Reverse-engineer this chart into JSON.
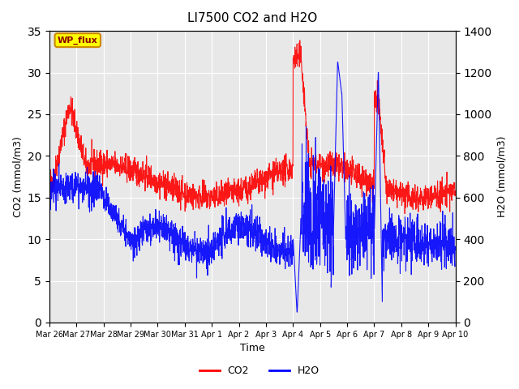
{
  "title": "LI7500 CO2 and H2O",
  "xlabel": "Time",
  "ylabel_left": "CO2 (mmol/m3)",
  "ylabel_right": "H2O (mmol/m3)",
  "ylim_left": [
    0,
    35
  ],
  "ylim_right": [
    0,
    1400
  ],
  "yticks_left": [
    0,
    5,
    10,
    15,
    20,
    25,
    30,
    35
  ],
  "yticks_right": [
    0,
    200,
    400,
    600,
    800,
    1000,
    1200,
    1400
  ],
  "co2_color": "#FF0000",
  "h2o_color": "#0000FF",
  "bg_color": "#ffffff",
  "plot_bg_color": "#e8e8e8",
  "grid_color": "#ffffff",
  "legend_labels": [
    "CO2",
    "H2O"
  ],
  "annotation_text": "WP_flux",
  "annotation_bg": "#ffff00",
  "annotation_border": "#cc8800",
  "num_points": 2000
}
